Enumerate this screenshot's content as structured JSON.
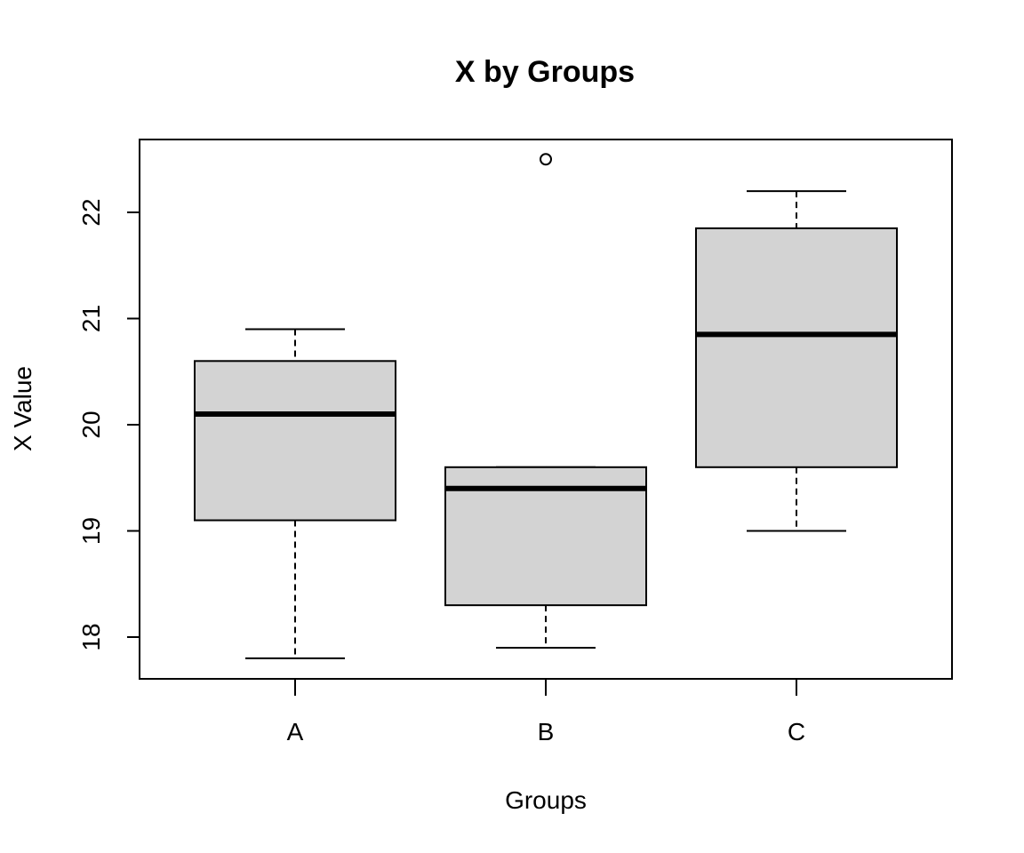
{
  "chart_data": {
    "type": "boxplot",
    "title": "X by Groups",
    "xlabel": "Groups",
    "ylabel": "X Value",
    "ylim": [
      17.6,
      22.7
    ],
    "yticks": [
      18,
      19,
      20,
      21,
      22
    ],
    "categories": [
      "A",
      "B",
      "C"
    ],
    "box_fill": "#d3d3d3",
    "line_color": "#000000",
    "boxes": [
      {
        "category": "A",
        "whisker_low": 17.8,
        "q1": 19.1,
        "median": 20.1,
        "q3": 20.6,
        "whisker_high": 20.9,
        "outliers": []
      },
      {
        "category": "B",
        "whisker_low": 17.9,
        "q1": 18.3,
        "median": 19.4,
        "q3": 19.6,
        "whisker_high": 19.6,
        "outliers": [
          22.5
        ]
      },
      {
        "category": "C",
        "whisker_low": 19.0,
        "q1": 19.6,
        "median": 20.85,
        "q3": 21.85,
        "whisker_high": 22.2,
        "outliers": []
      }
    ],
    "grid": false,
    "legend": "none"
  }
}
